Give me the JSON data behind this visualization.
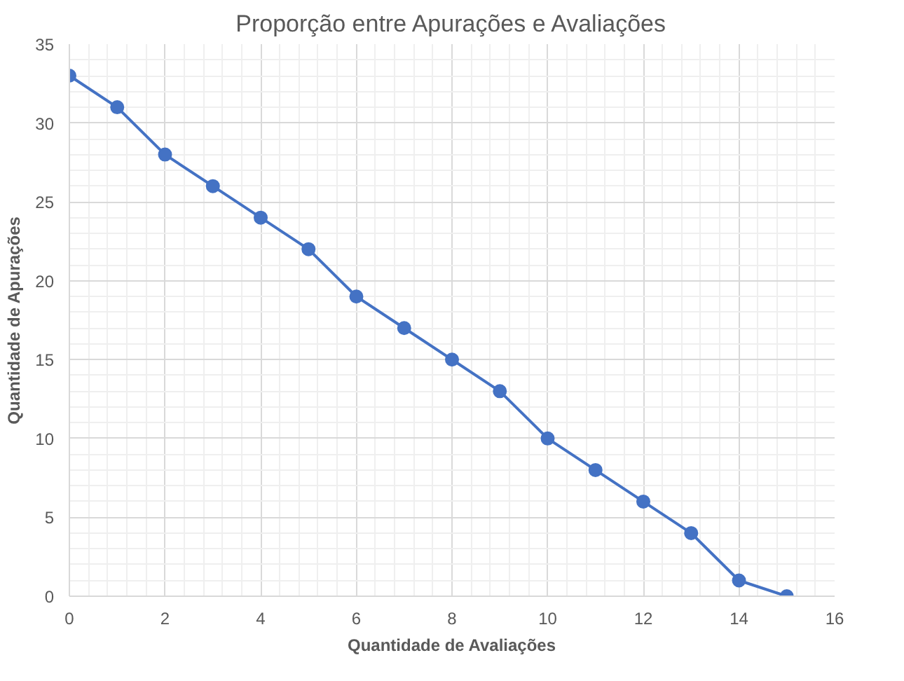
{
  "chart_data": {
    "type": "line",
    "title": "Proporção entre Apurações e Avaliações",
    "xlabel": "Quantidade de Avaliações",
    "ylabel": "Quantidade de Apurações",
    "x": [
      0,
      1,
      2,
      3,
      4,
      5,
      6,
      7,
      8,
      9,
      10,
      11,
      12,
      13,
      14,
      15
    ],
    "series": [
      {
        "color": "#4472c4",
        "values": [
          33,
          31,
          28,
          26,
          24,
          22,
          19,
          17,
          15,
          13,
          10,
          8,
          6,
          4,
          1,
          0
        ]
      }
    ],
    "xlim": [
      0,
      16
    ],
    "xticks": [
      0,
      2,
      4,
      6,
      8,
      10,
      12,
      14,
      16
    ],
    "ylim": [
      0,
      35
    ],
    "yticks": [
      0,
      5,
      10,
      15,
      20,
      25,
      30,
      35
    ],
    "grid": true,
    "marker": "circle",
    "line_style": "solid"
  }
}
